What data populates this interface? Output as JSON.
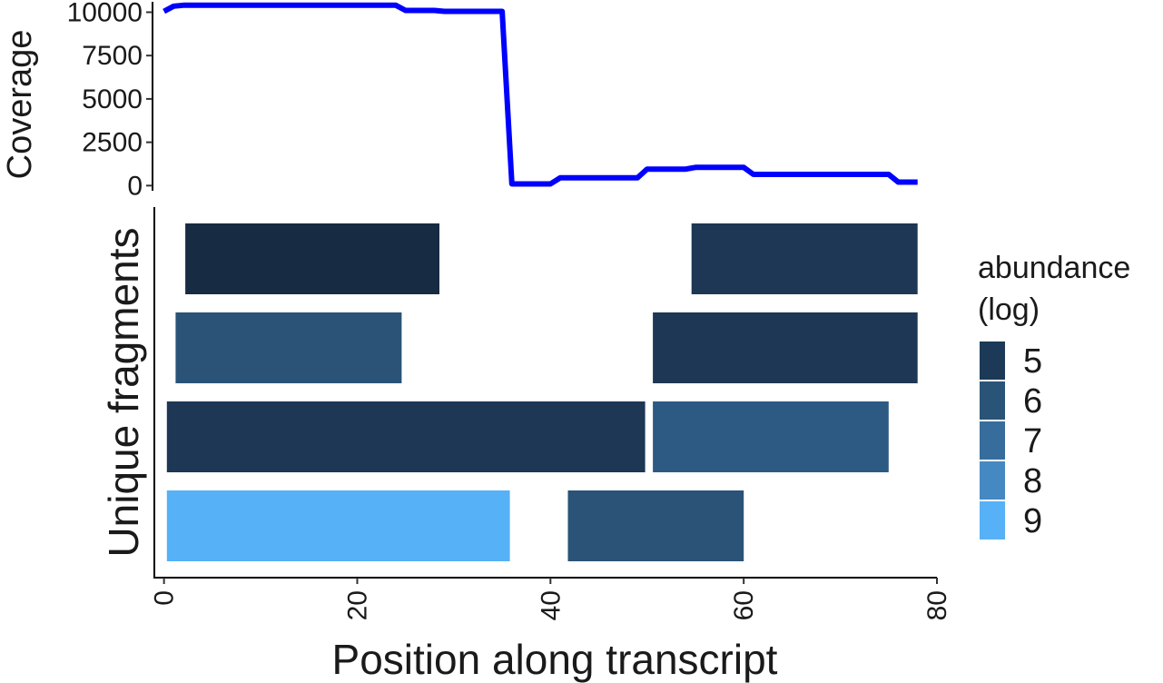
{
  "chart_data": [
    {
      "type": "line",
      "ylabel": "Coverage",
      "yticks": [
        0,
        2500,
        5000,
        7500,
        10000
      ],
      "ylim": [
        -400,
        10600
      ],
      "xlim": [
        -1,
        80
      ],
      "color": "#0000ff",
      "series": [
        {
          "x": [
            0,
            1,
            2,
            3,
            5,
            10,
            15,
            20,
            24,
            25,
            26,
            28,
            29,
            30,
            33,
            35,
            36,
            37,
            38,
            40,
            41,
            42,
            44,
            46,
            48,
            49,
            50,
            52,
            54,
            55,
            58,
            60,
            61,
            64,
            68,
            72,
            75,
            76,
            77,
            78
          ],
          "y": [
            10050,
            10350,
            10400,
            10400,
            10400,
            10400,
            10400,
            10400,
            10400,
            10100,
            10100,
            10100,
            10050,
            10050,
            10050,
            10050,
            100,
            100,
            100,
            100,
            450,
            450,
            450,
            450,
            450,
            450,
            950,
            950,
            950,
            1050,
            1050,
            1050,
            650,
            650,
            650,
            650,
            650,
            200,
            200,
            200
          ]
        }
      ]
    },
    {
      "type": "bar",
      "orientation": "horizontal",
      "xlabel": "Position along transcript",
      "ylabel": "Unique fragments",
      "xticks": [
        0,
        20,
        40,
        60,
        80
      ],
      "xlim": [
        -1,
        80
      ],
      "legend": {
        "title_lines": [
          "abundance",
          "(log)"
        ],
        "position": "right",
        "levels": [
          {
            "label": "5",
            "color": "#1c3a57"
          },
          {
            "label": "6",
            "color": "#2a5378"
          },
          {
            "label": "7",
            "color": "#376d9c"
          },
          {
            "label": "8",
            "color": "#4589c2"
          },
          {
            "label": "9",
            "color": "#56b1f7"
          }
        ]
      },
      "fragments": [
        {
          "row": 1,
          "start": 2.2,
          "end": 28.5,
          "abundance": 4.6,
          "color": "#172b42"
        },
        {
          "row": 1,
          "start": 54.6,
          "end": 78,
          "abundance": 5,
          "color": "#1d3754"
        },
        {
          "row": 2,
          "start": 1.2,
          "end": 24.6,
          "abundance": 6,
          "color": "#2a5377"
        },
        {
          "row": 2,
          "start": 50.6,
          "end": 78,
          "abundance": 5,
          "color": "#1d3754"
        },
        {
          "row": 3,
          "start": 0.3,
          "end": 49.8,
          "abundance": 5,
          "color": "#1d3754"
        },
        {
          "row": 3,
          "start": 50.6,
          "end": 75,
          "abundance": 6.2,
          "color": "#2c5a83"
        },
        {
          "row": 4,
          "start": 0.3,
          "end": 35.8,
          "abundance": 9,
          "color": "#56b1f7"
        },
        {
          "row": 4,
          "start": 41.8,
          "end": 60,
          "abundance": 6,
          "color": "#2a5377"
        }
      ]
    }
  ]
}
